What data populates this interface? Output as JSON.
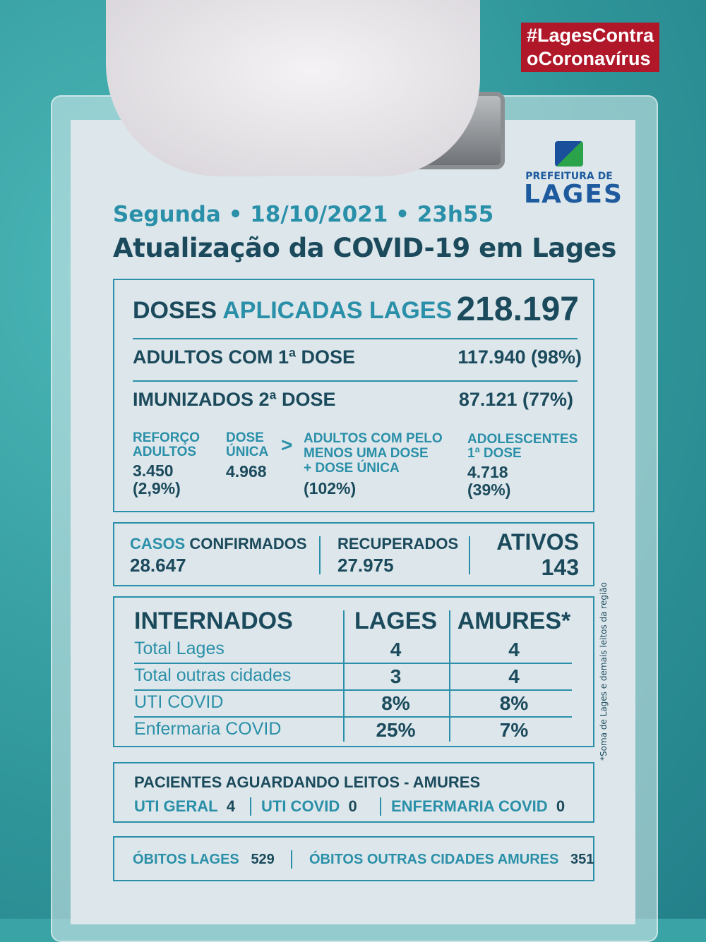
{
  "hashtag": [
    "#LagesContra",
    "oCoronavírus"
  ],
  "logo": {
    "line1": "PREFEITURA DE",
    "line2": "LAGES"
  },
  "header": {
    "date": "Segunda • 18/10/2021 •  23h55",
    "title": "Atualização da COVID-19 em Lages"
  },
  "doses": {
    "label_a": "DOSES",
    "label_b": "APLICADAS LAGES",
    "total": "218.197",
    "first_label": "ADULTOS COM 1ª DOSE",
    "first_value": "117.940 (98%)",
    "second_label": "IMUNIZADOS 2ª DOSE",
    "second_value": "87.121 (77%)",
    "booster_label": [
      "REFORÇO",
      "ADULTOS"
    ],
    "booster_value": [
      "3.450",
      "(2,9%)"
    ],
    "single_label": [
      "DOSE",
      "ÚNICA"
    ],
    "single_value": "4.968",
    "gt": ">",
    "atleast_label": [
      "ADULTOS  COM PELO",
      "MENOS UMA DOSE",
      "+ DOSE ÚNICA"
    ],
    "atleast_value": "(102%)",
    "teen_label": [
      "ADOLESCENTES",
      "1ª DOSE"
    ],
    "teen_value": [
      "4.718",
      "(39%)"
    ]
  },
  "cases": {
    "confirmed_a": "CASOS",
    "confirmed_b": "CONFIRMADOS",
    "confirmed": "28.647",
    "recovered_label": "RECUPERADOS",
    "recovered": "27.975",
    "active_label": "ATIVOS",
    "active": "143"
  },
  "hospital": {
    "headers": [
      "INTERNADOS",
      "LAGES",
      "AMURES*"
    ],
    "rows": [
      [
        "Total Lages",
        "4",
        "4"
      ],
      [
        "Total outras cidades",
        "3",
        "4"
      ],
      [
        "UTI COVID",
        "8%",
        "8%"
      ],
      [
        "Enfermaria COVID",
        "25%",
        "7%"
      ]
    ],
    "note": "*Soma de Lages e demais leitos da região"
  },
  "waiting": {
    "title": "PACIENTES AGUARDANDO LEITOS - AMURES",
    "items": [
      {
        "label": "UTI GERAL",
        "value": "4"
      },
      {
        "label": "UTI COVID",
        "value": "0"
      },
      {
        "label": "ENFERMARIA COVID",
        "value": "0"
      }
    ]
  },
  "deaths": {
    "lages_label": "ÓBITOS LAGES",
    "lages": "529",
    "other_label": "ÓBITOS OUTRAS CIDADES AMURES",
    "other": "351"
  },
  "colors": {
    "accent": "#2a8fa8",
    "dark": "#1b4a5c",
    "tag": "#b0182a"
  }
}
